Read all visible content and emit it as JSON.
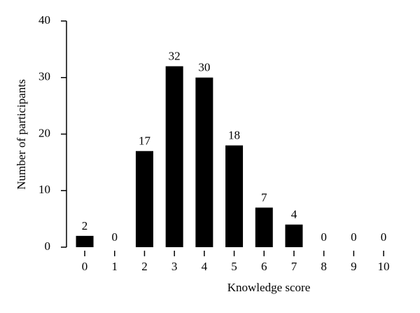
{
  "chart_data": {
    "type": "bar",
    "x_label": "Knowledge score",
    "y_label": "Number of participants",
    "categories": [
      "0",
      "1",
      "2",
      "3",
      "4",
      "5",
      "6",
      "7",
      "8",
      "9",
      "10"
    ],
    "values": [
      2,
      0,
      17,
      32,
      30,
      18,
      7,
      4,
      0,
      0,
      0
    ],
    "color": "#000000",
    "ylim": [
      0,
      40
    ],
    "yticks": [
      0,
      10,
      20,
      30,
      40
    ],
    "grid": false
  }
}
